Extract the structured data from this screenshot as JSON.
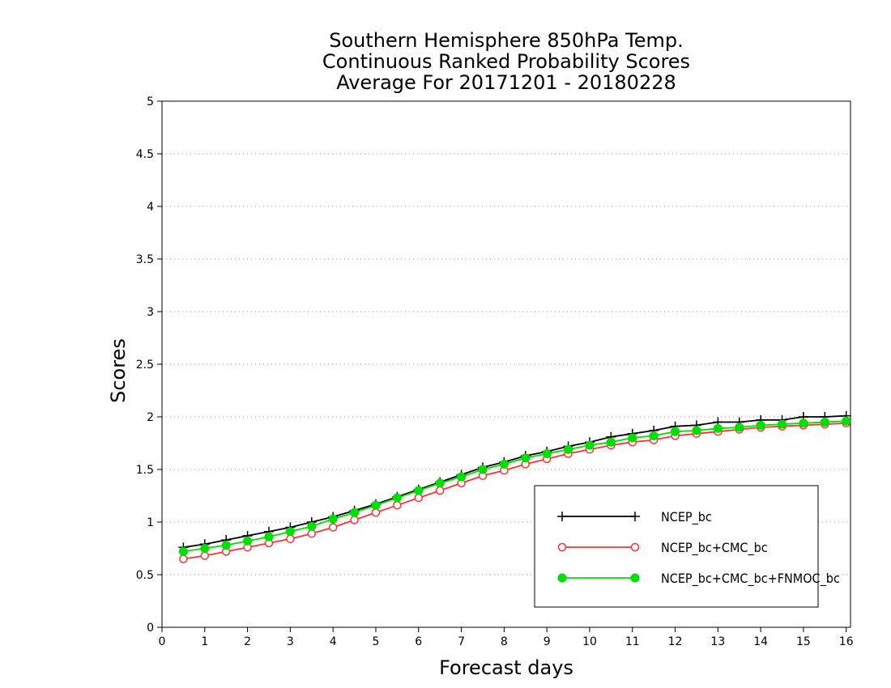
{
  "chart_data": {
    "type": "line",
    "title": [
      "Southern Hemisphere 850hPa Temp.",
      "Continuous Ranked Probability Scores",
      "Average For 20171201 - 20180228"
    ],
    "xlabel": "Forecast days",
    "ylabel": "Scores",
    "xlim": [
      0,
      16.1
    ],
    "ylim": [
      0,
      5
    ],
    "x_ticks": [
      0,
      1,
      2,
      3,
      4,
      5,
      6,
      7,
      8,
      9,
      10,
      11,
      12,
      13,
      14,
      15,
      16
    ],
    "y_ticks": [
      0,
      0.5,
      1,
      1.5,
      2,
      2.5,
      3,
      3.5,
      4,
      4.5,
      5
    ],
    "y_tick_labels": [
      "0",
      "0.5",
      "1",
      "1.5",
      "2",
      "2.5",
      "3",
      "3.5",
      "4",
      "4.5",
      "5"
    ],
    "grid": "dotted-horizontal",
    "legend_position": "bottom-right",
    "x": [
      0.5,
      1,
      1.5,
      2,
      2.5,
      3,
      3.5,
      4,
      4.5,
      5,
      5.5,
      6,
      6.5,
      7,
      7.5,
      8,
      8.5,
      9,
      9.5,
      10,
      10.5,
      11,
      11.5,
      12,
      12.5,
      13,
      13.5,
      14,
      14.5,
      15,
      15.5,
      16
    ],
    "series": [
      {
        "name": "NCEP_bc",
        "color": "#000000",
        "marker": "plus",
        "values": [
          0.76,
          0.79,
          0.83,
          0.87,
          0.91,
          0.95,
          1.0,
          1.05,
          1.11,
          1.17,
          1.24,
          1.31,
          1.38,
          1.45,
          1.52,
          1.57,
          1.63,
          1.67,
          1.72,
          1.76,
          1.81,
          1.84,
          1.87,
          1.91,
          1.92,
          1.95,
          1.95,
          1.97,
          1.97,
          2.0,
          2.0,
          2.01
        ]
      },
      {
        "name": "NCEP_bc+CMC_bc",
        "color": "#ff3333",
        "marker": "open-circle",
        "values": [
          0.65,
          0.68,
          0.72,
          0.76,
          0.8,
          0.84,
          0.89,
          0.95,
          1.02,
          1.09,
          1.16,
          1.23,
          1.3,
          1.37,
          1.44,
          1.49,
          1.55,
          1.6,
          1.65,
          1.69,
          1.73,
          1.76,
          1.78,
          1.82,
          1.84,
          1.86,
          1.88,
          1.9,
          1.91,
          1.92,
          1.93,
          1.94
        ]
      },
      {
        "name": "NCEP_bc+CMC_bc+FNMOC_bc",
        "color": "#00dd00",
        "marker": "filled-circle",
        "values": [
          0.72,
          0.75,
          0.78,
          0.82,
          0.86,
          0.91,
          0.96,
          1.03,
          1.09,
          1.16,
          1.23,
          1.3,
          1.37,
          1.43,
          1.5,
          1.55,
          1.61,
          1.65,
          1.69,
          1.73,
          1.76,
          1.8,
          1.82,
          1.86,
          1.87,
          1.89,
          1.9,
          1.92,
          1.93,
          1.94,
          1.95,
          1.96
        ]
      }
    ]
  }
}
